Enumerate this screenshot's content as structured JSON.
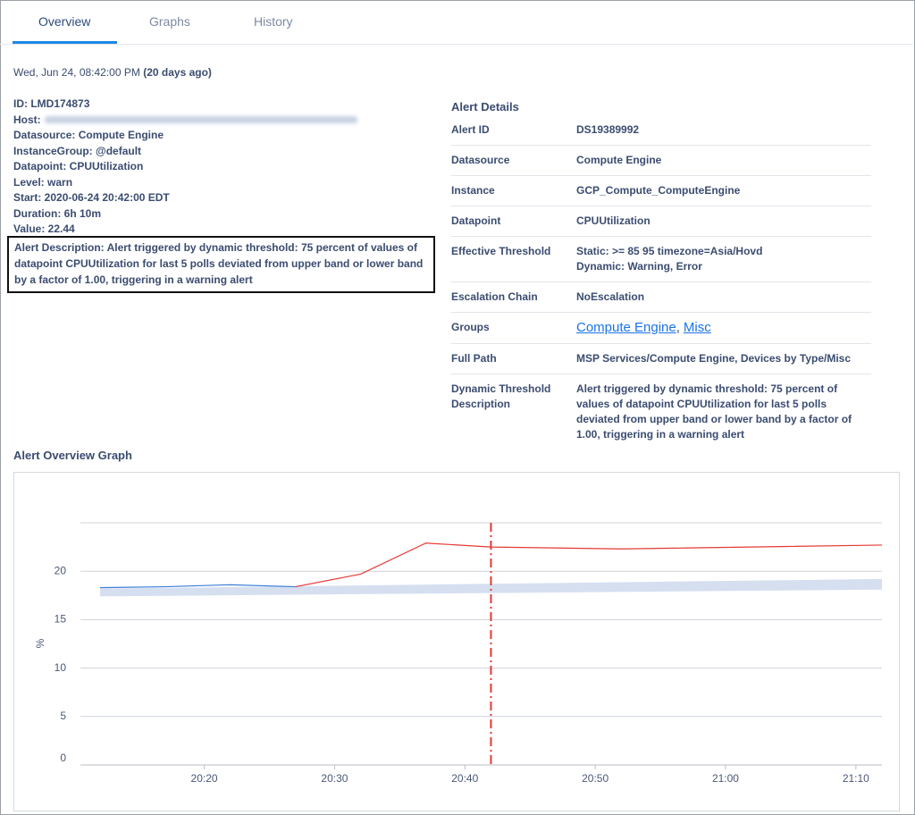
{
  "tabs": {
    "items": [
      "Overview",
      "Graphs",
      "History"
    ],
    "active": 0
  },
  "header": {
    "date": "Wed, Jun 24, 08:42:00 PM",
    "relative": "(20 days ago)"
  },
  "summary": {
    "items": [
      "ID: LMD174873",
      "Host:",
      "Datasource: Compute Engine",
      "InstanceGroup: @default",
      "Datapoint: CPUUtilization",
      "Level: warn",
      "Start: 2020-06-24 20:42:00 EDT",
      "Duration: 6h 10m",
      "Value: 22.44"
    ],
    "alert_description": "Alert Description: Alert triggered by dynamic threshold: 75 percent of values of datapoint CPUUtilization for last 5 polls deviated from upper band or lower band by a factor of 1.00, triggering in a warning alert"
  },
  "details": {
    "title": "Alert Details",
    "rows": [
      {
        "label": "Alert ID",
        "value": [
          "DS19389992"
        ]
      },
      {
        "label": "Datasource",
        "value": [
          "Compute Engine"
        ]
      },
      {
        "label": "Instance",
        "value": [
          "GCP_Compute_ComputeEngine"
        ]
      },
      {
        "label": "Datapoint",
        "value": [
          "CPUUtilization"
        ]
      },
      {
        "label": "Effective Threshold",
        "value": [
          "Static: >= 85 95 timezone=Asia/Hovd",
          "Dynamic: Warning, Error"
        ]
      },
      {
        "label": "Escalation Chain",
        "value": [
          "NoEscalation"
        ]
      },
      {
        "label": "Groups",
        "links": [
          "Compute Engine",
          "Misc"
        ],
        "separator": ","
      },
      {
        "label": "Full Path",
        "value": [
          "MSP Services/Compute Engine, Devices by Type/Misc"
        ]
      },
      {
        "label": "Dynamic Threshold Description",
        "value": [
          "Alert triggered by dynamic threshold: 75 percent of values of datapoint CPUUtilization for last 5 polls deviated from upper band or lower band by a factor of 1.00, triggering in a warning alert"
        ]
      }
    ]
  },
  "chart_data": {
    "type": "line",
    "title": "Alert Overview Graph",
    "y_label": "%",
    "grid": true,
    "xlim": [
      1210.5,
      1272
    ],
    "xticks": [
      {
        "value": 1220,
        "label": "20:20"
      },
      {
        "value": 1230,
        "label": "20:30"
      },
      {
        "value": 1240,
        "label": "20:40"
      },
      {
        "value": 1250,
        "label": "20:50"
      },
      {
        "value": 1260,
        "label": "21:00"
      },
      {
        "value": 1270,
        "label": "21:10"
      }
    ],
    "ylim": [
      0,
      25
    ],
    "yticks": [
      0,
      5,
      10,
      15,
      20
    ],
    "band": {
      "color": "#d5dff0",
      "x": [
        1212,
        1272
      ],
      "upper": [
        18.2,
        19.2
      ],
      "lower": [
        17.4,
        18.1
      ]
    },
    "series": [
      {
        "color": "#3b7dd8",
        "x": [
          1212,
          1217,
          1222,
          1227
        ],
        "values": [
          18.3,
          18.4,
          18.6,
          18.4
        ]
      },
      {
        "color": "#e53935",
        "x": [
          1227,
          1232,
          1237,
          1242,
          1252,
          1272
        ],
        "values": [
          18.4,
          19.7,
          22.9,
          22.5,
          22.3,
          22.7
        ]
      }
    ],
    "alert_marker": {
      "x": 1242,
      "color": "#e53935"
    }
  }
}
